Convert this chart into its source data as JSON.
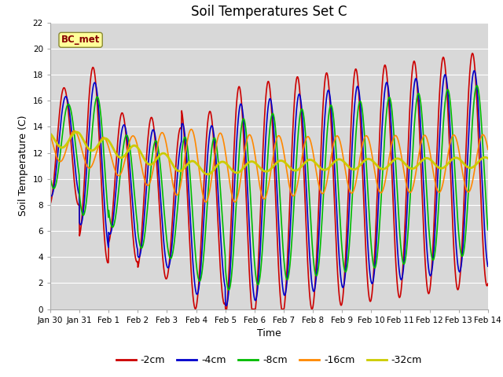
{
  "title": "Soil Temperatures Set C",
  "xlabel": "Time",
  "ylabel": "Soil Temperature (C)",
  "annotation": "BC_met",
  "ylim": [
    0,
    22
  ],
  "xlim": [
    0,
    15
  ],
  "xtick_labels": [
    "Jan 30",
    "Jan 31",
    "Feb 1",
    "Feb 2",
    "Feb 3",
    "Feb 4",
    "Feb 5",
    "Feb 6",
    "Feb 7",
    "Feb 8",
    "Feb 9",
    "Feb 10",
    "Feb 11",
    "Feb 12",
    "Feb 13",
    "Feb 14"
  ],
  "xtick_positions": [
    0,
    1,
    2,
    3,
    4,
    5,
    6,
    7,
    8,
    9,
    10,
    11,
    12,
    13,
    14,
    15
  ],
  "ytick_positions": [
    0,
    2,
    4,
    6,
    8,
    10,
    12,
    14,
    16,
    18,
    20,
    22
  ],
  "series_order": [
    "-2cm",
    "-4cm",
    "-8cm",
    "-16cm",
    "-32cm"
  ],
  "series": {
    "-2cm": {
      "color": "#cc0000",
      "lw": 1.2
    },
    "-4cm": {
      "color": "#0000cc",
      "lw": 1.2
    },
    "-8cm": {
      "color": "#00bb00",
      "lw": 1.2
    },
    "-16cm": {
      "color": "#ff8800",
      "lw": 1.2
    },
    "-32cm": {
      "color": "#cccc00",
      "lw": 2.0
    }
  },
  "legend_labels": [
    "-2cm",
    "-4cm",
    "-8cm",
    "-16cm",
    "-32cm"
  ],
  "legend_colors": [
    "#cc0000",
    "#0000cc",
    "#00bb00",
    "#ff8800",
    "#cccc00"
  ],
  "fig_bg": "#ffffff",
  "plot_bg": "#d8d8d8",
  "grid_color": "#ffffff",
  "title_fontsize": 12,
  "axis_fontsize": 9,
  "tick_fontsize": 7.5
}
